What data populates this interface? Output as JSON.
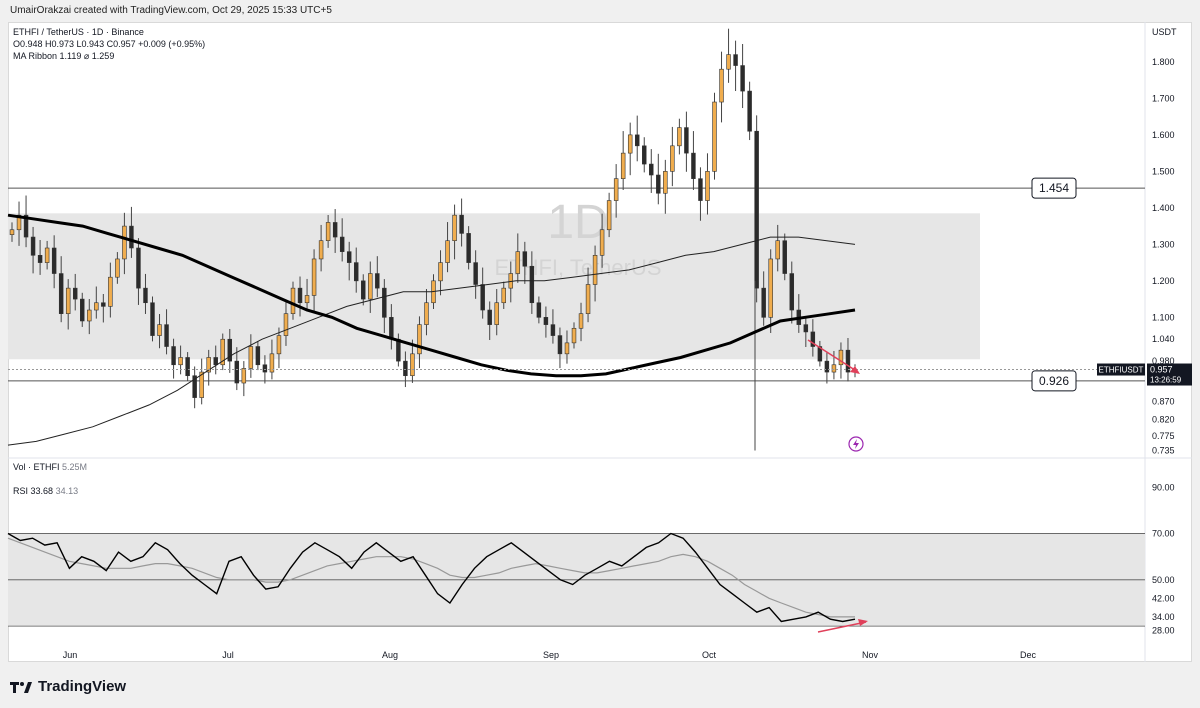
{
  "credit": "UmairOrakzai created with TradingView.com, Oct 29, 2025 15:33 UTC+5",
  "legend": {
    "symbol_line": "ETHFI / TetherUS · 1D · Binance",
    "ohlc": "O0.948  H0.973  L0.943  C0.957  +0.009 (+0.95%)",
    "ma_ribbon": "MA Ribbon  1.119  ⌀  1.259"
  },
  "watermark": {
    "timeframe": "1D",
    "pair": "ETHFI, TetherUS"
  },
  "currency": "USDT",
  "vol_label": {
    "name": "Vol · ETHFI",
    "value": "5.25M"
  },
  "rsi_label": {
    "name": "RSI",
    "v1": "33.68",
    "v2": "34.13"
  },
  "brand": "TradingView",
  "colors": {
    "up": "#f0ad4e",
    "down": "#2b2b2b",
    "arrow": "#e0405a",
    "band": "#e6e6e6",
    "ma_thick": "#000000",
    "ma_thin": "#222222"
  },
  "chart_data": [
    {
      "type": "candlestick",
      "title": "ETHFI / TetherUS · 1D · Binance",
      "x_labels": [
        "Jun",
        "Jul",
        "Aug",
        "Sep",
        "Oct",
        "Nov",
        "Dec"
      ],
      "y_ticks": [
        "1.800",
        "1.700",
        "1.600",
        "1.500",
        "1.400",
        "1.300",
        "1.200",
        "1.100",
        "1.040",
        "0.980",
        "0.926",
        "0.870",
        "0.820",
        "0.775",
        "0.735"
      ],
      "y_unit": "USDT",
      "levels": [
        {
          "label": "1.454",
          "value": 1.454
        },
        {
          "label": "0.926",
          "value": 0.926
        }
      ],
      "range_box": {
        "low": 0.985,
        "high": 1.385
      },
      "price_tag": {
        "symbol": "ETHFIUSDT",
        "price": "0.957",
        "countdown": "13:26:59"
      },
      "closes": [
        1.34,
        1.38,
        1.32,
        1.27,
        1.25,
        1.29,
        1.22,
        1.11,
        1.18,
        1.15,
        1.09,
        1.12,
        1.14,
        1.13,
        1.21,
        1.26,
        1.35,
        1.29,
        1.18,
        1.14,
        1.05,
        1.08,
        1.02,
        0.97,
        0.99,
        0.94,
        0.88,
        0.95,
        0.99,
        0.97,
        1.04,
        0.98,
        0.92,
        0.96,
        1.02,
        0.97,
        0.95,
        1.0,
        1.05,
        1.11,
        1.18,
        1.14,
        1.16,
        1.26,
        1.31,
        1.36,
        1.32,
        1.28,
        1.25,
        1.2,
        1.15,
        1.22,
        1.18,
        1.1,
        1.04,
        0.98,
        0.94,
        1.0,
        1.08,
        1.14,
        1.2,
        1.25,
        1.31,
        1.38,
        1.33,
        1.25,
        1.19,
        1.12,
        1.08,
        1.14,
        1.18,
        1.22,
        1.28,
        1.24,
        1.14,
        1.1,
        1.08,
        1.05,
        1.0,
        1.03,
        1.07,
        1.11,
        1.19,
        1.27,
        1.34,
        1.42,
        1.48,
        1.55,
        1.6,
        1.57,
        1.52,
        1.49,
        1.44,
        1.5,
        1.57,
        1.62,
        1.55,
        1.48,
        1.42,
        1.5,
        1.69,
        1.78,
        1.82,
        1.79,
        1.72,
        1.61,
        1.18,
        1.1,
        1.26,
        1.31,
        1.22,
        1.12,
        1.08,
        1.06,
        1.02,
        0.98,
        0.95,
        0.97,
        1.01,
        0.95,
        0.957
      ],
      "ma_thick": [
        1.38,
        1.37,
        1.36,
        1.35,
        1.33,
        1.31,
        1.29,
        1.27,
        1.24,
        1.21,
        1.18,
        1.15,
        1.12,
        1.1,
        1.07,
        1.05,
        1.03,
        1.01,
        0.99,
        0.97,
        0.955,
        0.945,
        0.94,
        0.94,
        0.945,
        0.96,
        0.975,
        0.99,
        1.01,
        1.03,
        1.06,
        1.09,
        1.1,
        1.11,
        1.12
      ],
      "ma_thin": [
        0.75,
        0.76,
        0.78,
        0.8,
        0.83,
        0.86,
        0.9,
        0.95,
        1.0,
        1.04,
        1.07,
        1.1,
        1.13,
        1.15,
        1.17,
        1.17,
        1.18,
        1.19,
        1.2,
        1.2,
        1.21,
        1.22,
        1.23,
        1.25,
        1.27,
        1.28,
        1.3,
        1.32,
        1.32,
        1.31,
        1.3
      ]
    },
    {
      "type": "line",
      "title": "RSI",
      "y_ticks": [
        "90.00",
        "70.00",
        "50.00",
        "42.00",
        "34.00",
        "28.00"
      ],
      "band": [
        30,
        70
      ],
      "series": [
        {
          "name": "RSI",
          "values": [
            70,
            67,
            68,
            65,
            66,
            55,
            60,
            58,
            54,
            62,
            58,
            60,
            66,
            63,
            57,
            52,
            48,
            44,
            58,
            60,
            52,
            46,
            47,
            55,
            62,
            66,
            63,
            60,
            55,
            62,
            66,
            62,
            58,
            60,
            52,
            44,
            40,
            48,
            55,
            60,
            63,
            66,
            62,
            58,
            54,
            50,
            48,
            52,
            55,
            58,
            56,
            60,
            64,
            66,
            70,
            68,
            62,
            55,
            48,
            44,
            40,
            36,
            38,
            32,
            33,
            34,
            36,
            33,
            32,
            33
          ]
        },
        {
          "name": "RSI MA",
          "values": [
            68,
            66,
            64,
            62,
            60,
            58,
            57,
            56,
            55,
            55,
            55,
            56,
            57,
            57,
            56,
            55,
            53,
            51,
            50,
            50,
            50,
            49,
            49,
            50,
            52,
            54,
            56,
            57,
            58,
            59,
            60,
            60,
            60,
            59,
            57,
            55,
            52,
            51,
            51,
            52,
            53,
            55,
            56,
            57,
            56,
            55,
            54,
            53,
            53,
            54,
            55,
            56,
            57,
            58,
            60,
            61,
            60,
            58,
            55,
            52,
            48,
            45,
            42,
            40,
            38,
            36,
            35,
            34,
            34,
            34
          ]
        }
      ]
    }
  ]
}
